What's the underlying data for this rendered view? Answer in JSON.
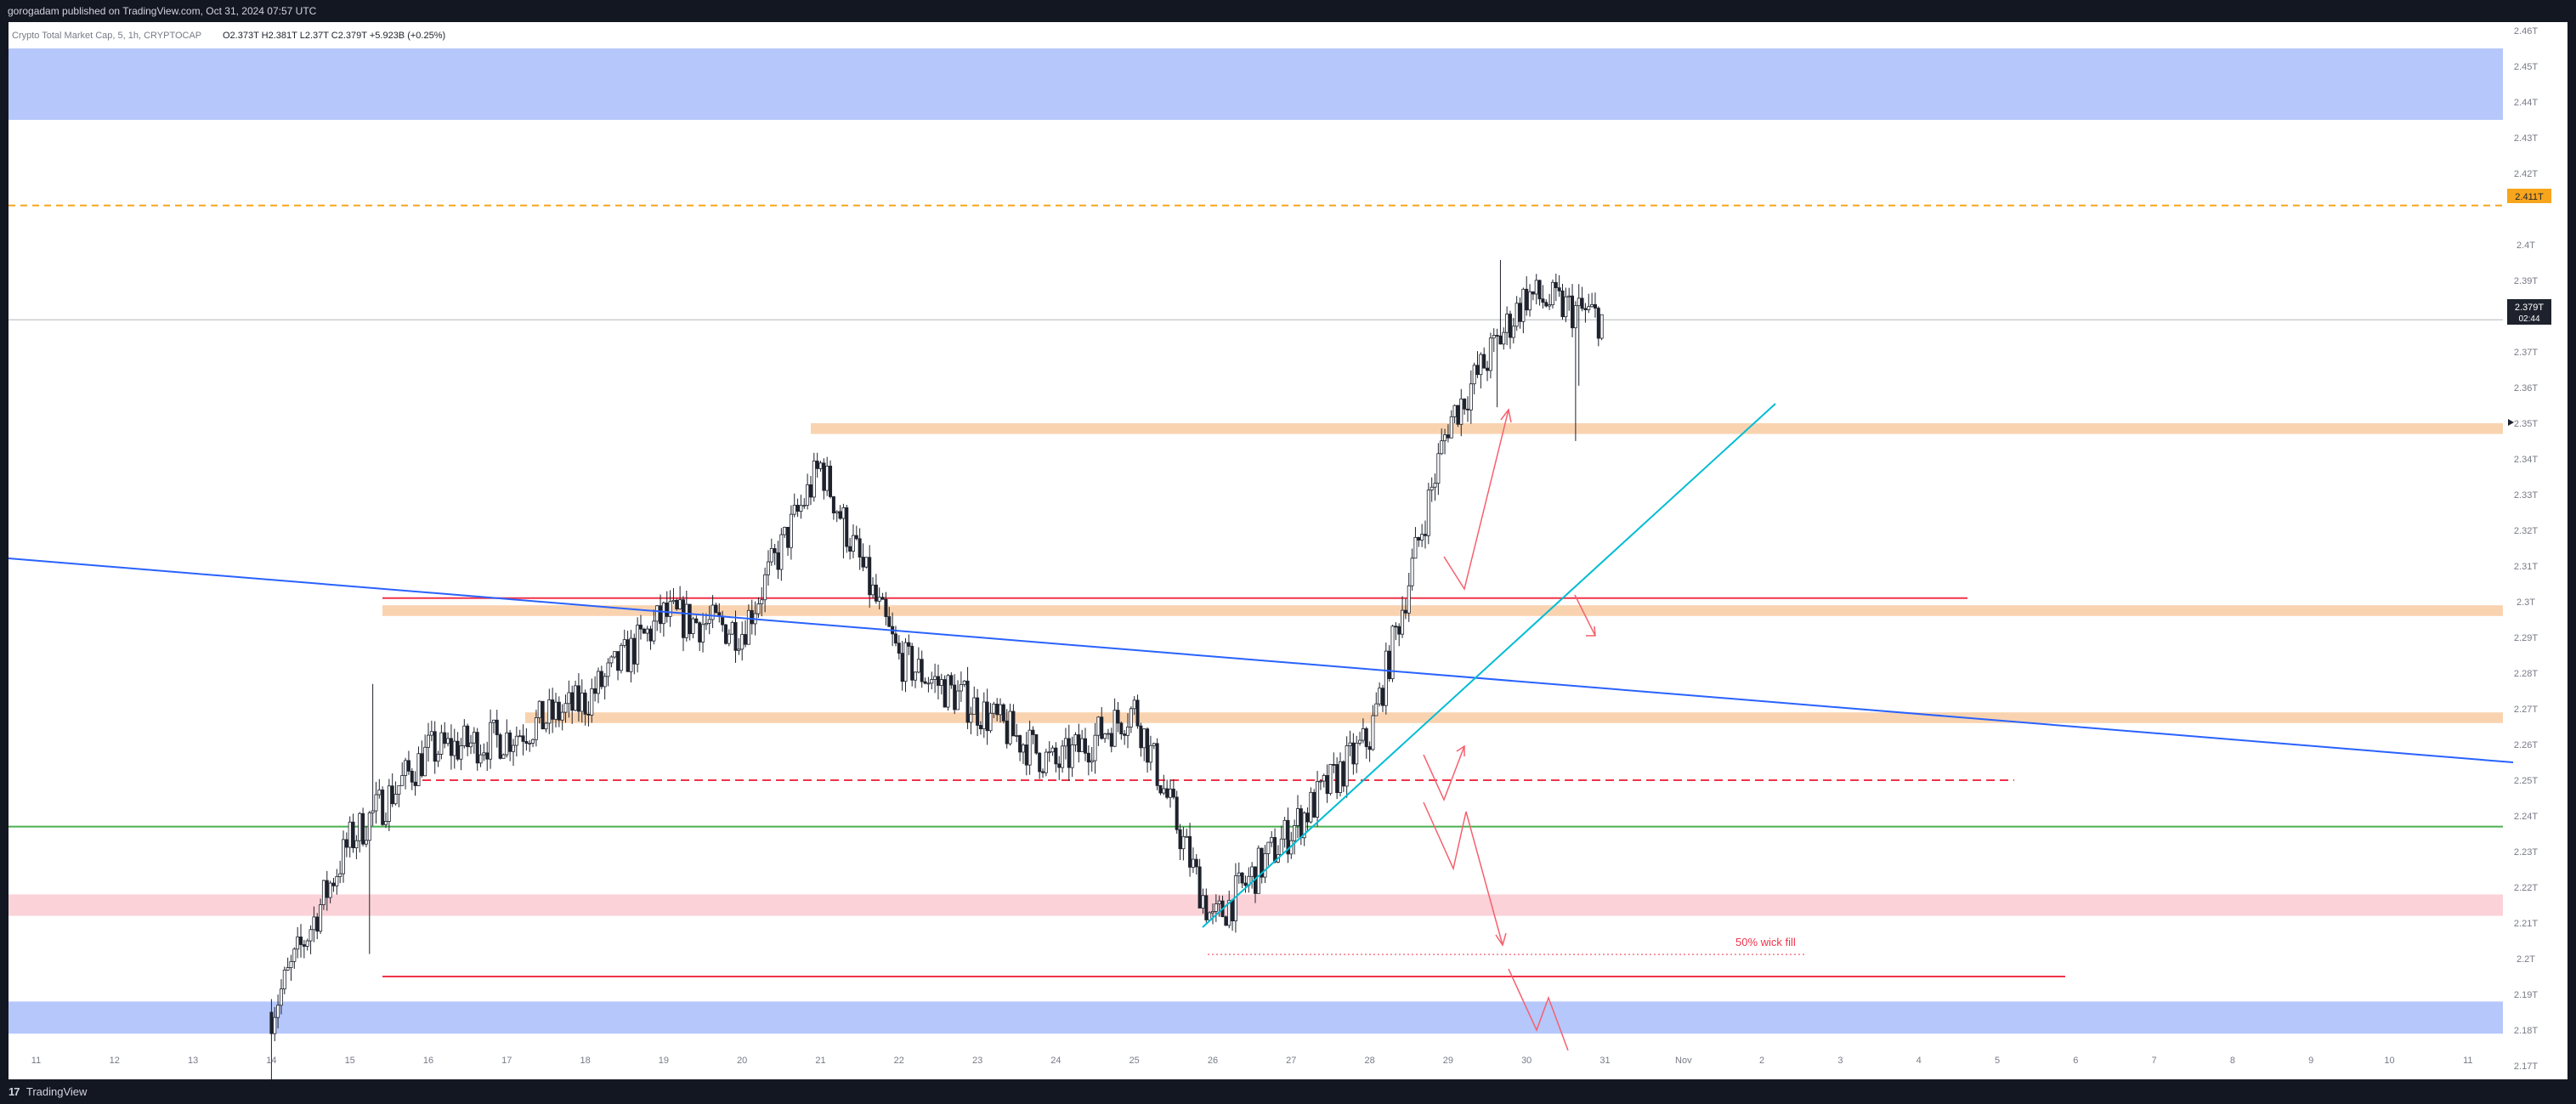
{
  "header": {
    "publish_line": "gorogadam published on TradingView.com, Oct 31, 2024 07:57 UTC"
  },
  "legend": {
    "symbol_line": "Crypto Total Market Cap, 5, 1h, CRYPTOCAP",
    "ohlc_text": "O2.373T H2.381T L2.37T C2.379T +5.923B (+0.25%)"
  },
  "footer": {
    "brand_mark": "17",
    "brand_name": "TradingView"
  },
  "colors": {
    "background": "#ffffff",
    "candle": "#1e222d",
    "zone_blue": "#b5c7fb",
    "zone_orange": "#f9d3b0",
    "zone_pink": "#fbd2d8",
    "line_red": "#f0334a",
    "line_orange_dashed": "#f7a51c",
    "line_green": "#4caf50",
    "trend_blue": "#2962ff",
    "trend_cyan": "#00bcd4",
    "arrow_red": "#f5606e"
  },
  "chart_data": {
    "type": "candlestick",
    "title": "Crypto Total Market Cap, 5, 1h, CRYPTOCAP",
    "x_tick_labels": [
      "11",
      "12",
      "13",
      "14",
      "15",
      "16",
      "17",
      "18",
      "19",
      "20",
      "21",
      "22",
      "23",
      "24",
      "25",
      "26",
      "27",
      "28",
      "29",
      "30",
      "31",
      "Nov",
      "2",
      "3",
      "4",
      "5",
      "6",
      "7",
      "8",
      "9",
      "10",
      "11"
    ],
    "y_tick_labels": [
      "2.46T",
      "2.45T",
      "2.44T",
      "2.43T",
      "2.42T",
      "2.4T",
      "2.39T",
      "2.37T",
      "2.36T",
      "2.35T",
      "2.34T",
      "2.33T",
      "2.32T",
      "2.31T",
      "2.3T",
      "2.29T",
      "2.28T",
      "2.27T",
      "2.26T",
      "2.25T",
      "2.24T",
      "2.23T",
      "2.22T",
      "2.21T",
      "2.2T",
      "2.19T",
      "2.18T",
      "2.17T"
    ],
    "ylim": [
      2.165,
      2.465
    ],
    "grid": false,
    "current_price": {
      "label": "2.379T",
      "countdown": "02:44",
      "value": 2.379
    },
    "marked_level": {
      "label": "2.411T",
      "value": 2.411
    },
    "annotations": [
      "50% wick fill"
    ],
    "price_path": [
      {
        "date": "Oct 14",
        "close": 2.185
      },
      {
        "date": "Oct 15",
        "close": 2.233
      },
      {
        "date": "Oct 16",
        "close": 2.258
      },
      {
        "date": "Oct 17",
        "close": 2.262
      },
      {
        "date": "Oct 18",
        "close": 2.272
      },
      {
        "date": "Oct 19",
        "close": 2.296
      },
      {
        "date": "Oct 20",
        "close": 2.292
      },
      {
        "date": "Oct 21",
        "close": 2.338
      },
      {
        "date": "Oct 22",
        "close": 2.284
      },
      {
        "date": "Oct 23",
        "close": 2.27
      },
      {
        "date": "Oct 24",
        "close": 2.254
      },
      {
        "date": "Oct 25",
        "close": 2.27
      },
      {
        "date": "Oct 26",
        "close": 2.21
      },
      {
        "date": "Oct 27",
        "close": 2.236
      },
      {
        "date": "Oct 28",
        "close": 2.262
      },
      {
        "date": "Oct 29",
        "close": 2.35
      },
      {
        "date": "Oct 30",
        "close": 2.386
      },
      {
        "date": "Oct 31",
        "close": 2.379
      }
    ],
    "zones": [
      {
        "kind": "blue",
        "from": 2.435,
        "to": 2.455
      },
      {
        "kind": "orange",
        "from": 2.347,
        "to": 2.35
      },
      {
        "kind": "orange",
        "from": 2.296,
        "to": 2.299
      },
      {
        "kind": "orange",
        "from": 2.266,
        "to": 2.269
      },
      {
        "kind": "pink",
        "from": 2.212,
        "to": 2.218
      },
      {
        "kind": "blue",
        "from": 2.179,
        "to": 2.188
      }
    ],
    "levels": [
      {
        "kind": "red",
        "value": 2.301
      },
      {
        "kind": "red-dashed",
        "value": 2.25
      },
      {
        "kind": "green",
        "value": 2.237
      },
      {
        "kind": "red",
        "value": 2.195
      }
    ]
  }
}
